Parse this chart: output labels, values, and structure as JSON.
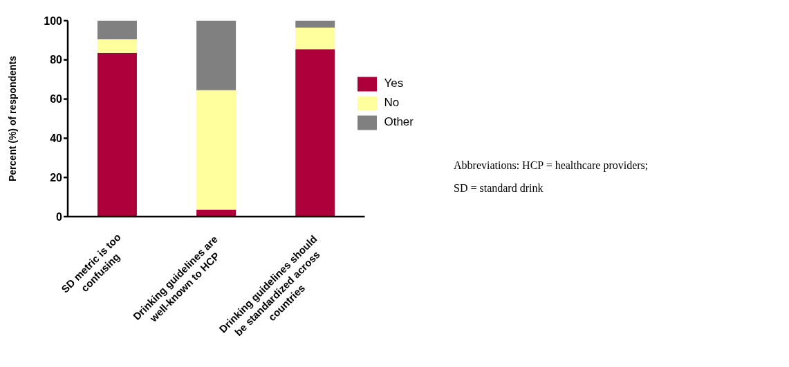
{
  "chart_data": {
    "type": "bar",
    "stacked": true,
    "ylabel": "Percent (%) of respondents",
    "categories": [
      "SD metric is too\nconfusing",
      "Drinking guidelines are\nwell-known to HCP",
      "Drinking guidelines should\nbe standardized across\ncountries"
    ],
    "series": [
      {
        "name": "Yes",
        "color": "#ad003a",
        "values": [
          83.5,
          3.5,
          85.5
        ]
      },
      {
        "name": "No",
        "color": "#ffff9e",
        "values": [
          7,
          61,
          11
        ]
      },
      {
        "name": "Other",
        "color": "#808080",
        "values": [
          9.5,
          35.5,
          3.5
        ]
      }
    ],
    "ylim": [
      0,
      100
    ],
    "yticks": [
      0,
      20,
      40,
      60,
      80,
      100
    ],
    "grid": false,
    "legend": "right",
    "annotations": [
      "Abbreviations: HCP = healthcare providers;",
      "SD = standard drink"
    ]
  }
}
